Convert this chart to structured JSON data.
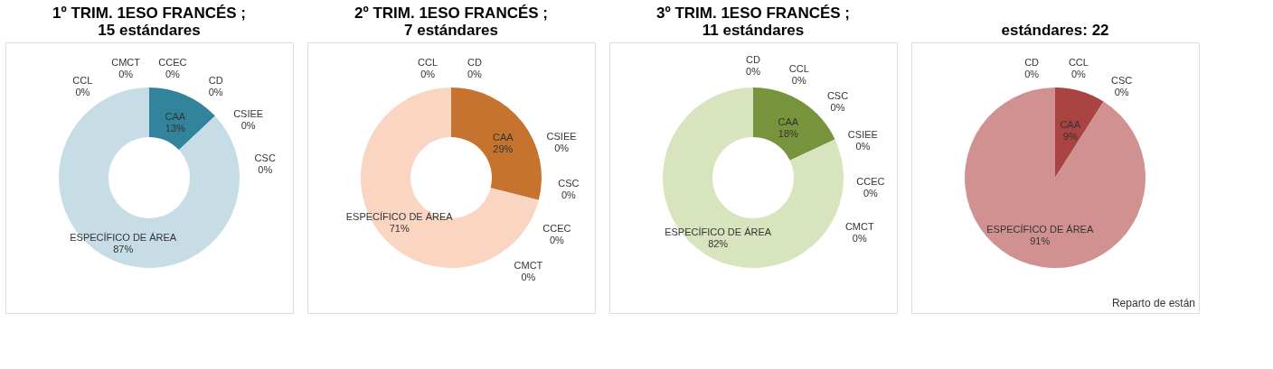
{
  "chart_data": [
    {
      "type": "donut",
      "title": "1º TRIM. 1ESO FRANCÉS ; 15 estándares",
      "categories": [
        "CAA",
        "CSIEE",
        "CSC",
        "ESPECÍFICO DE ÁREA",
        "CCL",
        "CMCT",
        "CCEC",
        "CD"
      ],
      "values": [
        13,
        0,
        0,
        87,
        0,
        0,
        0,
        0
      ],
      "value_labels": [
        "13%",
        "0%",
        "0%",
        "87%",
        "0%",
        "0%",
        "0%",
        "0%"
      ],
      "colors": [
        "#31849b",
        "#c6dde6",
        "#c6dde6",
        "#c6dde6",
        "#c6dde6",
        "#c6dde6",
        "#c6dde6",
        "#c6dde6"
      ],
      "legend": false
    },
    {
      "type": "donut",
      "title": "2º TRIM. 1ESO FRANCÉS ; 7 estándares",
      "categories": [
        "CAA",
        "CSIEE",
        "CSC",
        "CCEC",
        "CMCT",
        "ESPECÍFICO DE ÁREA",
        "CCL",
        "CD"
      ],
      "values": [
        29,
        0,
        0,
        0,
        0,
        71,
        0,
        0
      ],
      "value_labels": [
        "29%",
        "0%",
        "0%",
        "0%",
        "0%",
        "71%",
        "0%",
        "0%"
      ],
      "colors": [
        "#c5732f",
        "#f9d5c2",
        "#f9d5c2",
        "#f9d5c2",
        "#f9d5c2",
        "#f9d5c2",
        "#f9d5c2",
        "#f9d5c2"
      ],
      "legend": false
    },
    {
      "type": "donut",
      "title": "3º TRIM. 1ESO FRANCÉS ; 11 estándares",
      "categories": [
        "CAA",
        "CCL",
        "CSC",
        "CSIEE",
        "CCEC",
        "CMCT",
        "ESPECÍFICO DE ÁREA",
        "CD"
      ],
      "values": [
        18,
        0,
        0,
        0,
        0,
        0,
        82,
        0
      ],
      "value_labels": [
        "18%",
        "0%",
        "0%",
        "0%",
        "0%",
        "0%",
        "82%",
        "0%"
      ],
      "colors": [
        "#77933c",
        "#d8e4bd",
        "#d8e4bd",
        "#d8e4bd",
        "#d8e4bd",
        "#d8e4bd",
        "#d8e4bd",
        "#d8e4bd"
      ],
      "legend": false
    },
    {
      "type": "pie",
      "title": "estándares: 22",
      "categories": [
        "CAA",
        "CSC",
        "ESPECÍFICO DE ÁREA",
        "CD",
        "CCL"
      ],
      "values": [
        9,
        0,
        91,
        0,
        0
      ],
      "value_labels": [
        "9%",
        "0%",
        "91%",
        "0%",
        "0%"
      ],
      "colors": [
        "#a94442",
        "#d29191",
        "#d29191",
        "#d29191",
        "#d29191"
      ],
      "legend": false,
      "annotations": [
        "Reparto de están"
      ]
    }
  ]
}
